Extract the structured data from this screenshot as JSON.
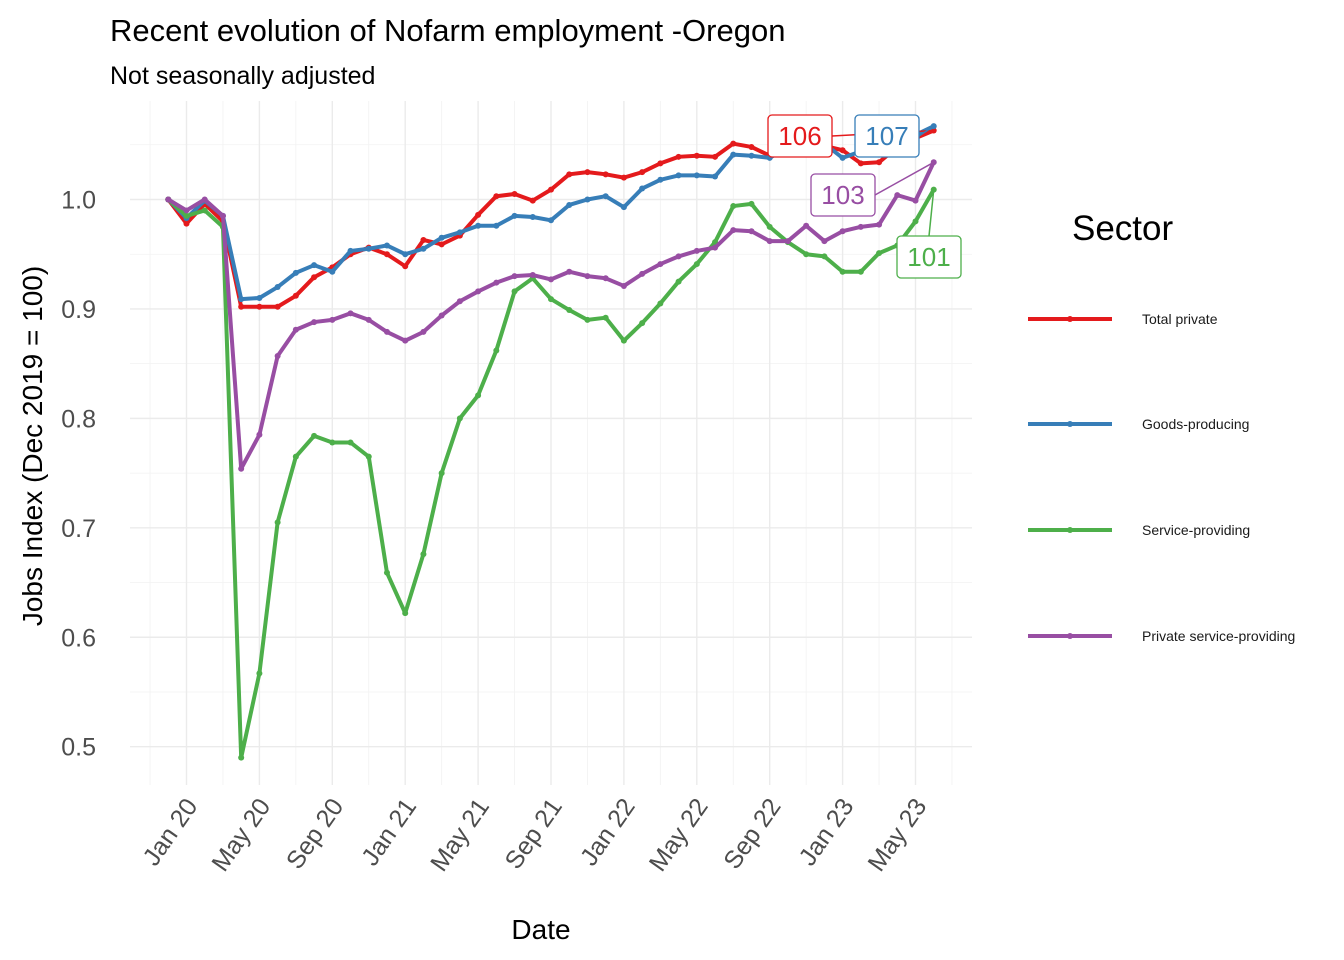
{
  "chart_data": {
    "type": "line",
    "title": "Recent evolution of Nofarm employment -Oregon",
    "subtitle": "Not seasonally adjusted",
    "xlabel": "Date",
    "ylabel": "Jobs Index (Dec 2019 = 100)",
    "ylim": [
      0.465,
      1.09
    ],
    "y_ticks": [
      0.5,
      0.6,
      0.7,
      0.8,
      0.9,
      1.0
    ],
    "y_tick_labels": [
      "0.5",
      "0.6",
      "0.7",
      "0.8",
      "0.9",
      "1.0"
    ],
    "x_ticks": [
      "Jan 20",
      "May 20",
      "Sep 20",
      "Jan 21",
      "May 21",
      "Sep 21",
      "Jan 22",
      "May 22",
      "Sep 22",
      "Jan 23",
      "May 23"
    ],
    "x_start": "2019-12",
    "x_end": "2023-06",
    "legend_title": "Sector",
    "legend_position": "right",
    "grid": true,
    "x": [
      "2019-12",
      "2020-01",
      "2020-02",
      "2020-03",
      "2020-04",
      "2020-05",
      "2020-06",
      "2020-07",
      "2020-08",
      "2020-09",
      "2020-10",
      "2020-11",
      "2020-12",
      "2021-01",
      "2021-02",
      "2021-03",
      "2021-04",
      "2021-05",
      "2021-06",
      "2021-07",
      "2021-08",
      "2021-09",
      "2021-10",
      "2021-11",
      "2021-12",
      "2022-01",
      "2022-02",
      "2022-03",
      "2022-04",
      "2022-05",
      "2022-06",
      "2022-07",
      "2022-08",
      "2022-09",
      "2022-10",
      "2022-11",
      "2022-12",
      "2023-01",
      "2023-02",
      "2023-03",
      "2023-04",
      "2023-05",
      "2023-06"
    ],
    "series": [
      {
        "name": "Total private",
        "color": "#e41a1c",
        "label": "106",
        "values": [
          1.0,
          0.978,
          0.996,
          0.98,
          0.902,
          0.902,
          0.902,
          0.912,
          0.929,
          0.938,
          0.95,
          0.956,
          0.95,
          0.939,
          0.963,
          0.959,
          0.967,
          0.986,
          1.003,
          1.005,
          0.999,
          1.009,
          1.023,
          1.025,
          1.023,
          1.02,
          1.025,
          1.033,
          1.039,
          1.04,
          1.039,
          1.051,
          1.048,
          1.04,
          1.05,
          1.052,
          1.049,
          1.045,
          1.033,
          1.034,
          1.048,
          1.056,
          1.063
        ]
      },
      {
        "name": "Goods-producing",
        "color": "#377eb8",
        "label": "107",
        "values": [
          1.0,
          0.983,
          0.999,
          0.985,
          0.909,
          0.91,
          0.92,
          0.933,
          0.94,
          0.934,
          0.953,
          0.955,
          0.958,
          0.95,
          0.955,
          0.965,
          0.97,
          0.976,
          0.976,
          0.985,
          0.984,
          0.981,
          0.995,
          1.0,
          1.003,
          0.993,
          1.01,
          1.018,
          1.022,
          1.022,
          1.021,
          1.041,
          1.04,
          1.038,
          1.048,
          1.052,
          1.051,
          1.038,
          1.044,
          1.049,
          1.053,
          1.059,
          1.067
        ]
      },
      {
        "name": "Service-providing",
        "color": "#4daf4a",
        "label": "101",
        "values": [
          1.0,
          0.985,
          0.99,
          0.975,
          0.49,
          0.567,
          0.705,
          0.765,
          0.784,
          0.778,
          0.778,
          0.765,
          0.659,
          0.622,
          0.676,
          0.75,
          0.8,
          0.821,
          0.862,
          0.916,
          0.928,
          0.909,
          0.899,
          0.89,
          0.892,
          0.871,
          0.887,
          0.905,
          0.925,
          0.941,
          0.961,
          0.994,
          0.996,
          0.975,
          0.961,
          0.95,
          0.948,
          0.934,
          0.934,
          0.951,
          0.958,
          0.98,
          1.009
        ]
      },
      {
        "name": "Private service-providing",
        "color": "#984ea3",
        "label": "103",
        "values": [
          1.0,
          0.99,
          1.0,
          0.985,
          0.754,
          0.785,
          0.857,
          0.881,
          0.888,
          0.89,
          0.896,
          0.89,
          0.879,
          0.871,
          0.879,
          0.894,
          0.907,
          0.916,
          0.924,
          0.93,
          0.931,
          0.927,
          0.934,
          0.93,
          0.928,
          0.921,
          0.932,
          0.941,
          0.948,
          0.953,
          0.956,
          0.972,
          0.971,
          0.962,
          0.962,
          0.976,
          0.962,
          0.971,
          0.975,
          0.977,
          1.004,
          0.999,
          1.034
        ]
      }
    ]
  }
}
